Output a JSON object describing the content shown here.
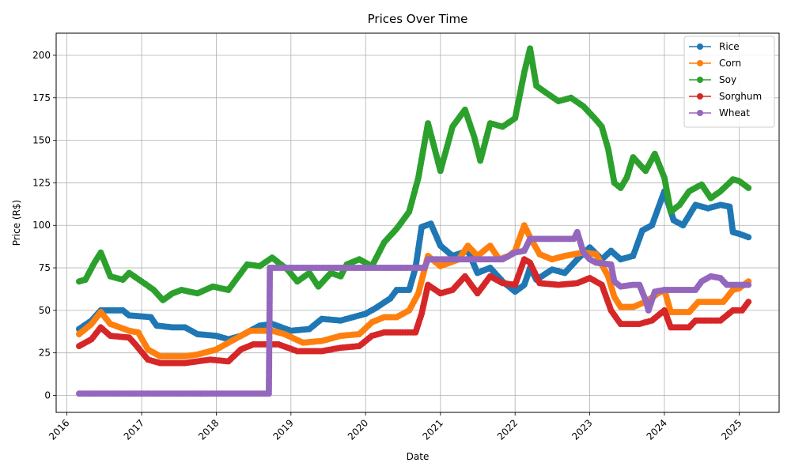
{
  "chart_data": {
    "type": "line",
    "title": "Prices Over Time",
    "xlabel": "Date",
    "ylabel": "Price (R$)",
    "x_type": "date",
    "xlim": [
      "2015-11-10",
      "2025-07-15"
    ],
    "ylim": [
      -10,
      213
    ],
    "x_ticks": [
      "2016",
      "2017",
      "2018",
      "2019",
      "2020",
      "2021",
      "2022",
      "2023",
      "2024",
      "2025"
    ],
    "y_ticks": [
      0,
      25,
      50,
      75,
      100,
      125,
      150,
      175,
      200
    ],
    "grid": true,
    "legend_position": "top-right",
    "series": [
      {
        "name": "Rice",
        "color": "#1f77b4",
        "points": [
          [
            "2016-03-01",
            39
          ],
          [
            "2016-05-01",
            44
          ],
          [
            "2016-06-15",
            50
          ],
          [
            "2016-08-01",
            50
          ],
          [
            "2016-10-01",
            50
          ],
          [
            "2016-11-01",
            47
          ],
          [
            "2017-02-15",
            46
          ],
          [
            "2017-03-15",
            41
          ],
          [
            "2017-06-01",
            40
          ],
          [
            "2017-08-01",
            40
          ],
          [
            "2017-10-01",
            36
          ],
          [
            "2018-01-01",
            35
          ],
          [
            "2018-03-01",
            33
          ],
          [
            "2018-05-01",
            35
          ],
          [
            "2018-08-01",
            41
          ],
          [
            "2018-10-01",
            42
          ],
          [
            "2019-01-01",
            38
          ],
          [
            "2019-04-01",
            39
          ],
          [
            "2019-06-01",
            45
          ],
          [
            "2019-09-01",
            44
          ],
          [
            "2019-11-01",
            46
          ],
          [
            "2020-01-01",
            48
          ],
          [
            "2020-02-15",
            51
          ],
          [
            "2020-05-01",
            57
          ],
          [
            "2020-06-01",
            62
          ],
          [
            "2020-08-01",
            62
          ],
          [
            "2020-09-01",
            75
          ],
          [
            "2020-10-01",
            99
          ],
          [
            "2020-11-15",
            101
          ],
          [
            "2021-01-01",
            88
          ],
          [
            "2021-03-01",
            82
          ],
          [
            "2021-05-15",
            85
          ],
          [
            "2021-07-01",
            72
          ],
          [
            "2021-09-01",
            75
          ],
          [
            "2021-11-01",
            67
          ],
          [
            "2022-01-01",
            61
          ],
          [
            "2022-02-15",
            65
          ],
          [
            "2022-03-15",
            75
          ],
          [
            "2022-04-15",
            68
          ],
          [
            "2022-07-01",
            74
          ],
          [
            "2022-09-01",
            72
          ],
          [
            "2022-11-01",
            80
          ],
          [
            "2023-01-01",
            87
          ],
          [
            "2023-03-01",
            80
          ],
          [
            "2023-04-15",
            85
          ],
          [
            "2023-06-01",
            80
          ],
          [
            "2023-08-01",
            82
          ],
          [
            "2023-09-15",
            97
          ],
          [
            "2023-11-01",
            100
          ],
          [
            "2024-01-01",
            120
          ],
          [
            "2024-02-15",
            103
          ],
          [
            "2024-04-01",
            100
          ],
          [
            "2024-06-01",
            112
          ],
          [
            "2024-08-01",
            110
          ],
          [
            "2024-10-01",
            112
          ],
          [
            "2024-11-15",
            111
          ],
          [
            "2024-12-01",
            96
          ],
          [
            "2025-01-01",
            95
          ],
          [
            "2025-02-15",
            93
          ]
        ]
      },
      {
        "name": "Corn",
        "color": "#ff7f0e",
        "points": [
          [
            "2016-03-01",
            36
          ],
          [
            "2016-05-01",
            42
          ],
          [
            "2016-06-15",
            49
          ],
          [
            "2016-08-01",
            42
          ],
          [
            "2016-11-01",
            38
          ],
          [
            "2016-12-15",
            37
          ],
          [
            "2017-02-01",
            27
          ],
          [
            "2017-04-01",
            23
          ],
          [
            "2017-08-01",
            23
          ],
          [
            "2017-10-01",
            24
          ],
          [
            "2018-01-01",
            27
          ],
          [
            "2018-04-01",
            33
          ],
          [
            "2018-06-15",
            38
          ],
          [
            "2018-10-01",
            38
          ],
          [
            "2018-12-01",
            36
          ],
          [
            "2019-03-01",
            31
          ],
          [
            "2019-06-01",
            32
          ],
          [
            "2019-09-01",
            35
          ],
          [
            "2019-12-01",
            36
          ],
          [
            "2020-02-01",
            43
          ],
          [
            "2020-04-01",
            46
          ],
          [
            "2020-06-01",
            46
          ],
          [
            "2020-08-01",
            50
          ],
          [
            "2020-09-15",
            60
          ],
          [
            "2020-11-01",
            82
          ],
          [
            "2021-01-01",
            76
          ],
          [
            "2021-04-01",
            80
          ],
          [
            "2021-05-15",
            88
          ],
          [
            "2021-07-01",
            82
          ],
          [
            "2021-09-01",
            88
          ],
          [
            "2021-10-15",
            80
          ],
          [
            "2021-12-01",
            82
          ],
          [
            "2022-01-01",
            85
          ],
          [
            "2022-02-15",
            100
          ],
          [
            "2022-03-15",
            93
          ],
          [
            "2022-05-01",
            83
          ],
          [
            "2022-07-01",
            80
          ],
          [
            "2022-09-01",
            82
          ],
          [
            "2022-12-01",
            84
          ],
          [
            "2023-02-01",
            83
          ],
          [
            "2023-04-01",
            70
          ],
          [
            "2023-05-01",
            58
          ],
          [
            "2023-06-01",
            52
          ],
          [
            "2023-08-01",
            52
          ],
          [
            "2023-10-01",
            55
          ],
          [
            "2023-12-01",
            60
          ],
          [
            "2024-01-01",
            62
          ],
          [
            "2024-02-01",
            49
          ],
          [
            "2024-05-01",
            49
          ],
          [
            "2024-06-15",
            55
          ],
          [
            "2024-10-15",
            55
          ],
          [
            "2024-12-01",
            62
          ],
          [
            "2025-01-01",
            63
          ],
          [
            "2025-02-15",
            67
          ]
        ]
      },
      {
        "name": "Soy",
        "color": "#2ca02c",
        "points": [
          [
            "2016-03-01",
            67
          ],
          [
            "2016-04-01",
            68
          ],
          [
            "2016-05-15",
            78
          ],
          [
            "2016-06-15",
            84
          ],
          [
            "2016-08-01",
            70
          ],
          [
            "2016-10-01",
            68
          ],
          [
            "2016-11-01",
            72
          ],
          [
            "2017-01-01",
            67
          ],
          [
            "2017-03-01",
            62
          ],
          [
            "2017-04-15",
            56
          ],
          [
            "2017-06-01",
            60
          ],
          [
            "2017-07-15",
            62
          ],
          [
            "2017-10-01",
            60
          ],
          [
            "2017-12-15",
            64
          ],
          [
            "2018-03-01",
            62
          ],
          [
            "2018-06-01",
            77
          ],
          [
            "2018-08-01",
            76
          ],
          [
            "2018-10-01",
            81
          ],
          [
            "2018-12-15",
            74
          ],
          [
            "2019-02-01",
            67
          ],
          [
            "2019-04-01",
            72
          ],
          [
            "2019-05-15",
            64
          ],
          [
            "2019-07-15",
            72
          ],
          [
            "2019-09-01",
            70
          ],
          [
            "2019-10-01",
            77
          ],
          [
            "2019-12-01",
            80
          ],
          [
            "2020-02-01",
            76
          ],
          [
            "2020-04-01",
            90
          ],
          [
            "2020-06-01",
            98
          ],
          [
            "2020-08-01",
            108
          ],
          [
            "2020-09-15",
            128
          ],
          [
            "2020-11-01",
            160
          ],
          [
            "2021-01-01",
            132
          ],
          [
            "2021-03-01",
            158
          ],
          [
            "2021-05-01",
            168
          ],
          [
            "2021-06-15",
            152
          ],
          [
            "2021-07-15",
            138
          ],
          [
            "2021-09-01",
            160
          ],
          [
            "2021-11-01",
            158
          ],
          [
            "2022-01-01",
            163
          ],
          [
            "2022-02-15",
            190
          ],
          [
            "2022-03-15",
            204
          ],
          [
            "2022-04-15",
            182
          ],
          [
            "2022-06-01",
            178
          ],
          [
            "2022-08-01",
            173
          ],
          [
            "2022-10-01",
            175
          ],
          [
            "2022-12-01",
            170
          ],
          [
            "2023-02-01",
            162
          ],
          [
            "2023-03-01",
            158
          ],
          [
            "2023-04-01",
            145
          ],
          [
            "2023-05-01",
            125
          ],
          [
            "2023-06-01",
            122
          ],
          [
            "2023-07-01",
            128
          ],
          [
            "2023-08-01",
            140
          ],
          [
            "2023-10-01",
            132
          ],
          [
            "2023-11-15",
            142
          ],
          [
            "2024-01-01",
            128
          ],
          [
            "2024-02-01",
            108
          ],
          [
            "2024-03-15",
            112
          ],
          [
            "2024-05-01",
            120
          ],
          [
            "2024-07-01",
            124
          ],
          [
            "2024-08-15",
            116
          ],
          [
            "2024-10-01",
            120
          ],
          [
            "2024-12-01",
            127
          ],
          [
            "2025-01-01",
            126
          ],
          [
            "2025-02-15",
            122
          ]
        ]
      },
      {
        "name": "Sorghum",
        "color": "#d62728",
        "points": [
          [
            "2016-03-01",
            29
          ],
          [
            "2016-05-01",
            33
          ],
          [
            "2016-06-15",
            40
          ],
          [
            "2016-08-01",
            35
          ],
          [
            "2016-11-01",
            34
          ],
          [
            "2016-12-01",
            30
          ],
          [
            "2017-02-01",
            21
          ],
          [
            "2017-04-01",
            19
          ],
          [
            "2017-08-01",
            19
          ],
          [
            "2017-12-01",
            21
          ],
          [
            "2018-03-01",
            20
          ],
          [
            "2018-05-01",
            27
          ],
          [
            "2018-07-01",
            30
          ],
          [
            "2018-11-01",
            30
          ],
          [
            "2019-02-01",
            26
          ],
          [
            "2019-06-01",
            26
          ],
          [
            "2019-09-01",
            28
          ],
          [
            "2019-12-01",
            29
          ],
          [
            "2020-02-01",
            35
          ],
          [
            "2020-04-01",
            37
          ],
          [
            "2020-07-01",
            37
          ],
          [
            "2020-09-01",
            37
          ],
          [
            "2020-10-01",
            48
          ],
          [
            "2020-11-01",
            65
          ],
          [
            "2021-01-01",
            60
          ],
          [
            "2021-03-01",
            62
          ],
          [
            "2021-05-01",
            70
          ],
          [
            "2021-07-01",
            60
          ],
          [
            "2021-09-01",
            70
          ],
          [
            "2021-11-01",
            66
          ],
          [
            "2022-01-01",
            65
          ],
          [
            "2022-02-15",
            80
          ],
          [
            "2022-03-15",
            78
          ],
          [
            "2022-05-01",
            66
          ],
          [
            "2022-08-01",
            65
          ],
          [
            "2022-11-01",
            66
          ],
          [
            "2023-01-01",
            69
          ],
          [
            "2023-03-01",
            65
          ],
          [
            "2023-04-15",
            50
          ],
          [
            "2023-06-01",
            42
          ],
          [
            "2023-09-01",
            42
          ],
          [
            "2023-11-01",
            44
          ],
          [
            "2024-01-01",
            50
          ],
          [
            "2024-02-01",
            40
          ],
          [
            "2024-05-01",
            40
          ],
          [
            "2024-06-01",
            44
          ],
          [
            "2024-10-01",
            44
          ],
          [
            "2024-12-01",
            50
          ],
          [
            "2025-01-15",
            50
          ],
          [
            "2025-02-15",
            55
          ]
        ]
      },
      {
        "name": "Wheat",
        "color": "#9467bd",
        "points": [
          [
            "2016-03-01",
            1
          ],
          [
            "2018-09-15",
            1
          ],
          [
            "2018-09-20",
            75
          ],
          [
            "2020-10-15",
            75
          ],
          [
            "2020-11-01",
            80
          ],
          [
            "2021-11-01",
            80
          ],
          [
            "2021-12-01",
            82
          ],
          [
            "2022-01-01",
            84
          ],
          [
            "2022-02-15",
            85
          ],
          [
            "2022-03-15",
            92
          ],
          [
            "2022-10-15",
            92
          ],
          [
            "2022-11-01",
            96
          ],
          [
            "2022-12-01",
            84
          ],
          [
            "2023-01-01",
            80
          ],
          [
            "2023-02-01",
            78
          ],
          [
            "2023-04-15",
            77
          ],
          [
            "2023-05-01",
            67
          ],
          [
            "2023-06-01",
            64
          ],
          [
            "2023-08-01",
            65
          ],
          [
            "2023-09-01",
            65
          ],
          [
            "2023-10-01",
            56
          ],
          [
            "2023-10-15",
            50
          ],
          [
            "2023-11-15",
            61
          ],
          [
            "2024-01-01",
            62
          ],
          [
            "2024-06-01",
            62
          ],
          [
            "2024-07-01",
            67
          ],
          [
            "2024-08-15",
            70
          ],
          [
            "2024-10-01",
            69
          ],
          [
            "2024-11-01",
            65
          ],
          [
            "2025-01-01",
            65
          ],
          [
            "2025-02-15",
            65
          ]
        ]
      }
    ]
  }
}
